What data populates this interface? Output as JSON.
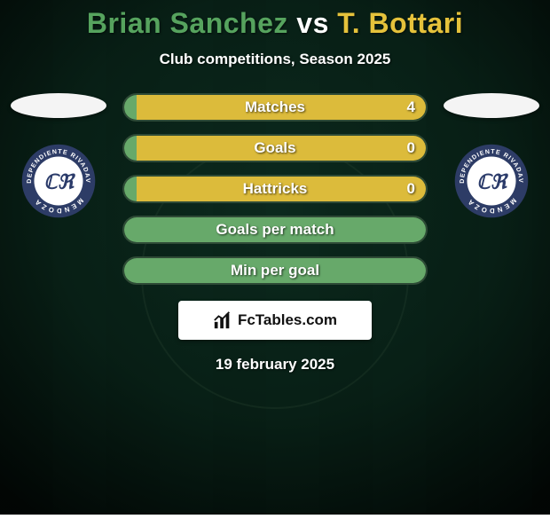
{
  "background": {
    "color_top": "#052018",
    "color_bottom": "#0a1a12",
    "vignette": "rgba(0,0,0,0.55)"
  },
  "title": {
    "player1": "Brian Sanchez",
    "vs": "vs",
    "player2": "T. Bottari",
    "color_player1": "#56a35e",
    "color_vs": "#ffffff",
    "color_player2": "#e5c23b",
    "fontsize": 32
  },
  "subtitle": "Club competitions, Season 2025",
  "left_player": {
    "club_name": "Independiente Rivadavia Mendoza"
  },
  "right_player": {
    "club_name": "Independiente Rivadavia Mendoza"
  },
  "club_badge": {
    "ring_outer": "#2d3c66",
    "ring_text": "#ffffff",
    "center_fill": "#ffffff",
    "monogram_fill": "#2b3b6a"
  },
  "stats": [
    {
      "label": "Matches",
      "left_value": "",
      "right_value": "4",
      "left_color": "#67a96a",
      "right_color": "#dcbb3b",
      "left_pct": 4,
      "right_pct": 96
    },
    {
      "label": "Goals",
      "left_value": "",
      "right_value": "0",
      "left_color": "#67a96a",
      "right_color": "#dcbb3b",
      "left_pct": 4,
      "right_pct": 96
    },
    {
      "label": "Hattricks",
      "left_value": "",
      "right_value": "0",
      "left_color": "#67a96a",
      "right_color": "#dcbb3b",
      "left_pct": 4,
      "right_pct": 96
    },
    {
      "label": "Goals per match",
      "left_value": "",
      "right_value": "",
      "left_color": "#67a96a",
      "right_color": "#dcbb3b",
      "left_pct": 100,
      "right_pct": 0
    },
    {
      "label": "Min per goal",
      "left_value": "",
      "right_value": "",
      "left_color": "#67a96a",
      "right_color": "#dcbb3b",
      "left_pct": 100,
      "right_pct": 0
    }
  ],
  "stat_bar": {
    "height": 32,
    "radius": 16,
    "track_border": "#2e4a36"
  },
  "brand": {
    "text": "FcTables.com",
    "box_bg": "#ffffff",
    "icon_color": "#111111"
  },
  "date": "19 february 2025"
}
